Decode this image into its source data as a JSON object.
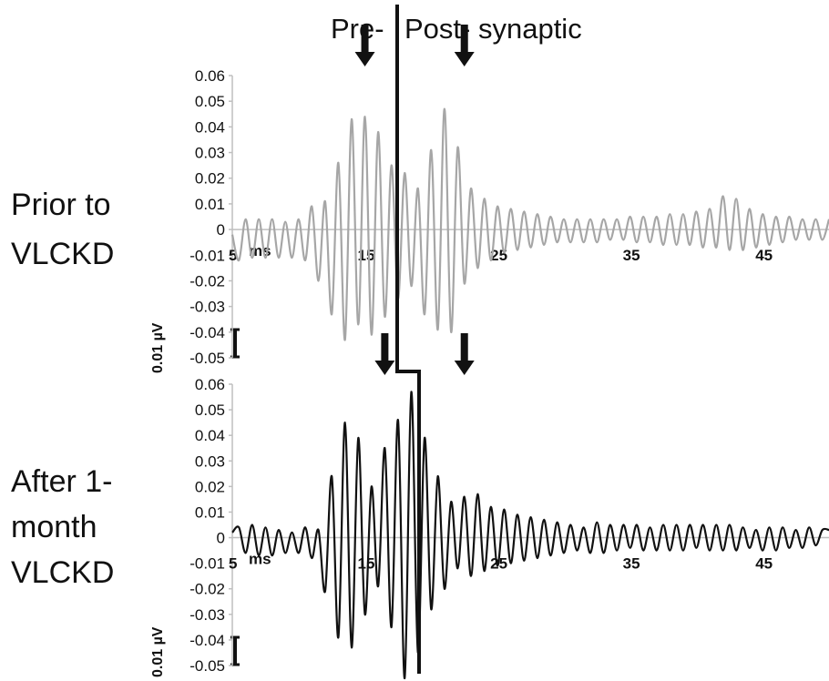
{
  "header": {
    "pre_label": "Pre-",
    "post_label": "Post- synaptic"
  },
  "panels": [
    {
      "label_line1": "Prior to",
      "label_line2": "VLCKD",
      "color": "#a6a6a6",
      "scale_bar_label": "0.01 µV"
    },
    {
      "label_line1": "After 1-",
      "label_line2": "month",
      "label_line3": "VLCKD",
      "color": "#111111",
      "scale_bar_label": "0.01 µV"
    }
  ],
  "chart_data": [
    {
      "type": "line",
      "title": "Prior to VLCKD",
      "xunit_label": "ms",
      "x_ticks": [
        5,
        15,
        25,
        35,
        45
      ],
      "y_ticks": [
        0.06,
        0.05,
        0.04,
        0.03,
        0.02,
        0.01,
        0,
        -0.01,
        -0.02,
        -0.03,
        -0.04,
        -0.05
      ],
      "y_tick_labels": [
        "0.06",
        "0.05",
        "0.04",
        "0.03",
        "0.02",
        "0.01",
        "0",
        "-0.01",
        "-0.02",
        "-0.03",
        "-0.04",
        "-0.05"
      ],
      "xlim": [
        5,
        50
      ],
      "ylim": [
        -0.05,
        0.06
      ],
      "series": [
        {
          "color": "#a6a6a6",
          "x": [
            5.0,
            5.5,
            6.0,
            6.5,
            7.0,
            7.5,
            8.0,
            8.5,
            9.0,
            9.5,
            10.0,
            10.5,
            11.0,
            11.5,
            12.0,
            12.5,
            13.0,
            13.5,
            14.0,
            14.5,
            15.0,
            15.5,
            16.0,
            16.5,
            17.0,
            17.5,
            18.0,
            18.5,
            19.0,
            19.5,
            20.0,
            20.5,
            21.0,
            21.5,
            22.0,
            22.5,
            23.0,
            23.5,
            24.0,
            24.5,
            25.0,
            25.5,
            26.0,
            26.5,
            27.0,
            27.5,
            28.0,
            28.5,
            29.0,
            29.5,
            30.0,
            30.5,
            31.0,
            31.5,
            32.0,
            32.5,
            33.0,
            33.5,
            34.0,
            34.5,
            35.0,
            35.5,
            36.0,
            36.5,
            37.0,
            37.5,
            38.0,
            38.5,
            39.0,
            39.5,
            40.0,
            40.5,
            41.0,
            41.5,
            42.0,
            42.5,
            43.0,
            43.5,
            44.0,
            44.5,
            45.0,
            45.5,
            46.0,
            46.5,
            47.0,
            47.5,
            48.0,
            48.5,
            49.0,
            49.5,
            50.0
          ],
          "y": [
            -0.002,
            -0.012,
            0.004,
            -0.011,
            0.004,
            -0.011,
            0.004,
            -0.011,
            0.003,
            -0.011,
            0.004,
            -0.012,
            0.009,
            -0.02,
            0.011,
            -0.033,
            0.026,
            -0.043,
            0.043,
            -0.037,
            0.044,
            -0.041,
            0.038,
            -0.034,
            0.025,
            -0.027,
            0.022,
            -0.022,
            0.016,
            -0.033,
            0.031,
            -0.039,
            0.047,
            -0.04,
            0.032,
            -0.021,
            0.016,
            -0.015,
            0.012,
            -0.012,
            0.009,
            -0.009,
            0.008,
            -0.008,
            0.007,
            -0.007,
            0.006,
            -0.006,
            0.005,
            -0.005,
            0.004,
            -0.005,
            0.004,
            -0.005,
            0.004,
            -0.005,
            0.004,
            -0.004,
            0.004,
            -0.004,
            0.005,
            -0.005,
            0.005,
            -0.005,
            0.005,
            -0.006,
            0.006,
            -0.006,
            0.006,
            -0.006,
            0.007,
            -0.007,
            0.008,
            -0.007,
            0.013,
            -0.008,
            0.012,
            -0.008,
            0.008,
            -0.007,
            0.006,
            -0.006,
            0.005,
            -0.005,
            0.005,
            -0.004,
            0.004,
            -0.004,
            0.004,
            -0.004,
            0.004
          ]
        }
      ],
      "arrows_at_x": [
        15,
        22.5
      ]
    },
    {
      "type": "line",
      "title": "After 1-month VLCKD",
      "xunit_label": "ms",
      "x_ticks": [
        5,
        15,
        25,
        35,
        45
      ],
      "y_ticks": [
        0.06,
        0.05,
        0.04,
        0.03,
        0.02,
        0.01,
        0,
        -0.01,
        -0.02,
        -0.03,
        -0.04,
        -0.05
      ],
      "y_tick_labels": [
        "0.06",
        "0.05",
        "0.04",
        "0.03",
        "0.02",
        "0.01",
        "0",
        "-0.01",
        "-0.02",
        "-0.03",
        "-0.04",
        "-0.05"
      ],
      "xlim": [
        5,
        50
      ],
      "ylim": [
        -0.05,
        0.06
      ],
      "series": [
        {
          "color": "#111111",
          "x": [
            5.0,
            5.5,
            6.0,
            6.5,
            7.0,
            7.5,
            8.0,
            8.5,
            9.0,
            9.5,
            10.0,
            10.5,
            11.0,
            11.5,
            12.0,
            12.5,
            13.0,
            13.5,
            14.0,
            14.5,
            15.0,
            15.5,
            16.0,
            16.5,
            17.0,
            17.5,
            18.0,
            18.5,
            19.0,
            19.5,
            20.0,
            20.5,
            21.0,
            21.5,
            22.0,
            22.5,
            23.0,
            23.5,
            24.0,
            24.5,
            25.0,
            25.5,
            26.0,
            26.5,
            27.0,
            27.5,
            28.0,
            28.5,
            29.0,
            29.5,
            30.0,
            30.5,
            31.0,
            31.5,
            32.0,
            32.5,
            33.0,
            33.5,
            34.0,
            34.5,
            35.0,
            35.5,
            36.0,
            36.5,
            37.0,
            37.5,
            38.0,
            38.5,
            39.0,
            39.5,
            40.0,
            40.5,
            41.0,
            41.5,
            42.0,
            42.5,
            43.0,
            43.5,
            44.0,
            44.5,
            45.0,
            45.5,
            46.0,
            46.5,
            47.0,
            47.5,
            48.0,
            48.5,
            49.0,
            49.5,
            50.0
          ],
          "y": [
            0.002,
            0.004,
            -0.006,
            0.005,
            -0.007,
            0.004,
            -0.007,
            0.003,
            -0.006,
            0.002,
            -0.006,
            0.004,
            -0.008,
            0.003,
            -0.021,
            0.024,
            -0.039,
            0.045,
            -0.043,
            0.039,
            -0.03,
            0.02,
            -0.019,
            0.035,
            -0.035,
            0.046,
            -0.055,
            0.057,
            -0.045,
            0.039,
            -0.028,
            0.024,
            -0.02,
            0.014,
            -0.012,
            0.016,
            -0.015,
            0.017,
            -0.013,
            0.012,
            -0.011,
            0.011,
            -0.01,
            0.009,
            -0.009,
            0.008,
            -0.008,
            0.007,
            -0.007,
            0.006,
            -0.006,
            0.005,
            -0.005,
            0.004,
            -0.006,
            0.006,
            -0.006,
            0.005,
            -0.005,
            0.005,
            -0.004,
            0.005,
            -0.005,
            0.004,
            -0.005,
            0.005,
            -0.005,
            0.005,
            -0.005,
            0.005,
            -0.004,
            0.005,
            -0.005,
            0.005,
            -0.005,
            0.005,
            -0.005,
            0.004,
            -0.004,
            0.003,
            -0.005,
            0.004,
            -0.005,
            0.004,
            -0.004,
            0.003,
            -0.004,
            0.004,
            -0.003,
            0.003,
            0.003
          ]
        }
      ],
      "arrows_at_x": [
        16.5,
        22.5
      ]
    }
  ]
}
